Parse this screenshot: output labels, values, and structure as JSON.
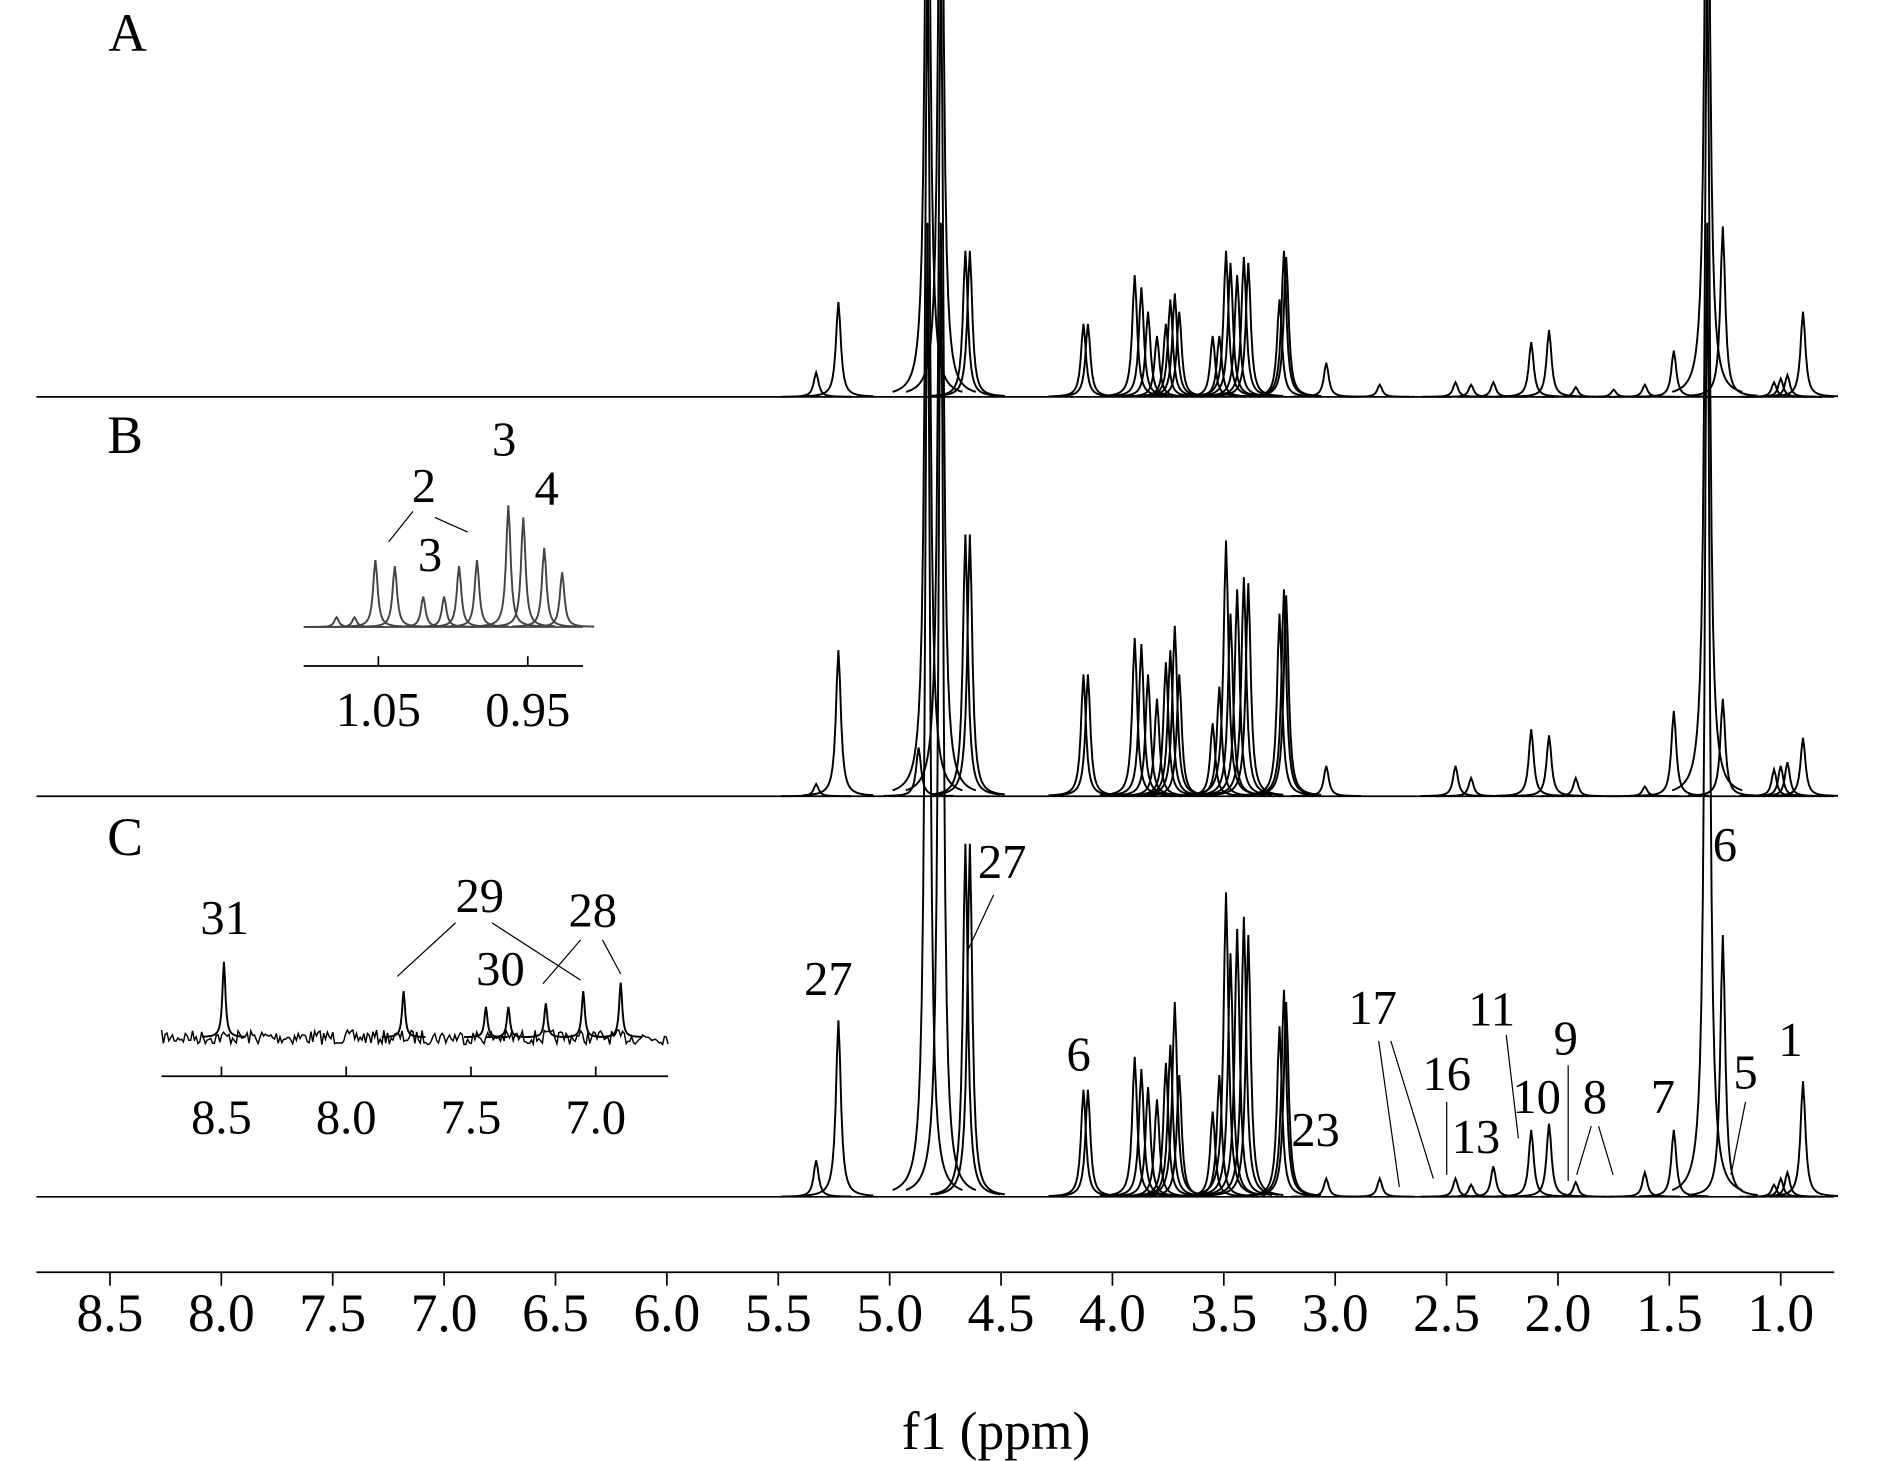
{
  "chart_data": [
    {
      "type": "spectrum",
      "x_label": "f1 (ppm)",
      "xlim": [
        8.83,
        0.76
      ],
      "xticks": [
        8.5,
        {
          "value": 8,
          "label": "8.0"
        },
        7.5,
        {
          "value": 7,
          "label": "7.0"
        },
        6.5,
        {
          "value": 6,
          "label": "6.0"
        },
        5.5,
        {
          "value": 5,
          "label": "5.0"
        },
        4.5,
        {
          "value": 4,
          "label": "4.0"
        },
        3.5,
        {
          "value": 3,
          "label": "3.0"
        },
        2.5,
        {
          "value": 2,
          "label": "2.0"
        },
        1.5,
        {
          "value": 1,
          "label": "1.0"
        }
      ],
      "series": [
        {
          "name": "A",
          "color": "#000000",
          "x": [
            5.33,
            5.23,
            4.83,
            4.77,
            4.66,
            4.64,
            4.13,
            4.11,
            3.9,
            3.87,
            3.84,
            3.8,
            3.76,
            3.74,
            3.72,
            3.7,
            3.55,
            3.52,
            3.49,
            3.47,
            3.44,
            3.41,
            3.39,
            3.25,
            3.23,
            3.22,
            3.04,
            2.8,
            2.46,
            2.39,
            2.29,
            2.12,
            2.04,
            1.92,
            1.75,
            1.61,
            1.48,
            1.33,
            1.26,
            1.03,
            1.0,
            0.97,
            0.9
          ],
          "values": [
            20,
            78,
            600,
            600,
            120,
            120,
            60,
            60,
            100,
            90,
            70,
            50,
            60,
            80,
            85,
            70,
            50,
            50,
            120,
            110,
            100,
            115,
            110,
            80,
            120,
            115,
            28,
            10,
            12,
            10,
            12,
            45,
            55,
            8,
            6,
            10,
            38,
            600,
            140,
            12,
            15,
            18,
            70
          ]
        },
        {
          "name": "B",
          "color": "#000000",
          "x": [
            5.33,
            5.23,
            4.87,
            4.83,
            4.77,
            4.66,
            4.64,
            4.13,
            4.11,
            3.9,
            3.87,
            3.84,
            3.8,
            3.76,
            3.74,
            3.72,
            3.7,
            3.55,
            3.52,
            3.49,
            3.47,
            3.44,
            3.41,
            3.39,
            3.25,
            3.23,
            3.22,
            3.04,
            2.46,
            2.39,
            2.12,
            2.04,
            1.92,
            1.61,
            1.48,
            1.33,
            1.26,
            1.03,
            1.0,
            0.97,
            0.9
          ],
          "values": [
            10,
            120,
            40,
            700,
            700,
            215,
            215,
            100,
            100,
            130,
            125,
            100,
            80,
            110,
            120,
            140,
            100,
            60,
            90,
            210,
            150,
            170,
            180,
            175,
            150,
            170,
            165,
            25,
            25,
            15,
            55,
            50,
            15,
            8,
            70,
            700,
            80,
            22,
            25,
            28,
            48
          ]
        },
        {
          "name": "C",
          "color": "#000000",
          "x": [
            5.33,
            5.23,
            4.83,
            4.77,
            4.66,
            4.64,
            4.13,
            4.11,
            3.9,
            3.87,
            3.84,
            3.8,
            3.76,
            3.74,
            3.72,
            3.7,
            3.55,
            3.52,
            3.49,
            3.47,
            3.44,
            3.41,
            3.39,
            3.25,
            3.23,
            3.22,
            3.04,
            2.8,
            2.46,
            2.39,
            2.29,
            2.12,
            2.04,
            1.92,
            1.61,
            1.48,
            1.33,
            1.26,
            1.03,
            1.0,
            0.97,
            0.9
          ],
          "values": [
            30,
            145,
            800,
            800,
            290,
            290,
            88,
            88,
            115,
            105,
            90,
            80,
            110,
            125,
            160,
            100,
            70,
            100,
            250,
            200,
            220,
            230,
            215,
            140,
            170,
            160,
            15,
            15,
            15,
            10,
            25,
            55,
            60,
            12,
            20,
            55,
            800,
            215,
            10,
            15,
            20,
            95
          ]
        }
      ],
      "annotations": [
        {
          "text": "27"
        },
        {
          "text": "27"
        },
        {
          "text": "6"
        },
        {
          "text": "23"
        },
        {
          "text": "17"
        },
        {
          "text": "16"
        },
        {
          "text": "13"
        },
        {
          "text": "11"
        },
        {
          "text": "10"
        },
        {
          "text": "9"
        },
        {
          "text": "8"
        },
        {
          "text": "7"
        },
        {
          "text": "6"
        },
        {
          "text": "5"
        },
        {
          "text": "1"
        }
      ]
    },
    {
      "type": "spectrum",
      "xlim": [
        1.1,
        0.913
      ],
      "xticks": [
        1.05,
        0.95
      ],
      "series": [
        {
          "color": "#444444",
          "x": [
            1.078,
            1.066,
            1.052,
            1.039,
            1.02,
            1.006,
            0.996,
            0.984,
            0.963,
            0.953,
            0.939,
            0.927
          ],
          "values": [
            8,
            8,
            55,
            50,
            25,
            25,
            50,
            55,
            100,
            90,
            65,
            45
          ]
        }
      ],
      "annotations": [
        {
          "text": "2"
        },
        {
          "text": "3"
        },
        {
          "text": "3"
        },
        {
          "text": "4"
        }
      ]
    },
    {
      "type": "spectrum",
      "xlim": [
        8.74,
        6.71
      ],
      "xticks": [
        8.5,
        {
          "value": 8,
          "label": "8.0"
        },
        7.5,
        {
          "value": 7,
          "label": "7.0"
        }
      ],
      "series": [
        {
          "color": "#000000",
          "x": [
            8.49,
            7.77,
            7.44,
            7.35,
            7.2,
            7.05,
            6.9
          ],
          "values": [
            62,
            38,
            25,
            25,
            28,
            38,
            45
          ]
        }
      ],
      "annotations": [
        {
          "text": "31"
        },
        {
          "text": "29"
        },
        {
          "text": "30"
        },
        {
          "text": "28"
        }
      ]
    }
  ]
}
